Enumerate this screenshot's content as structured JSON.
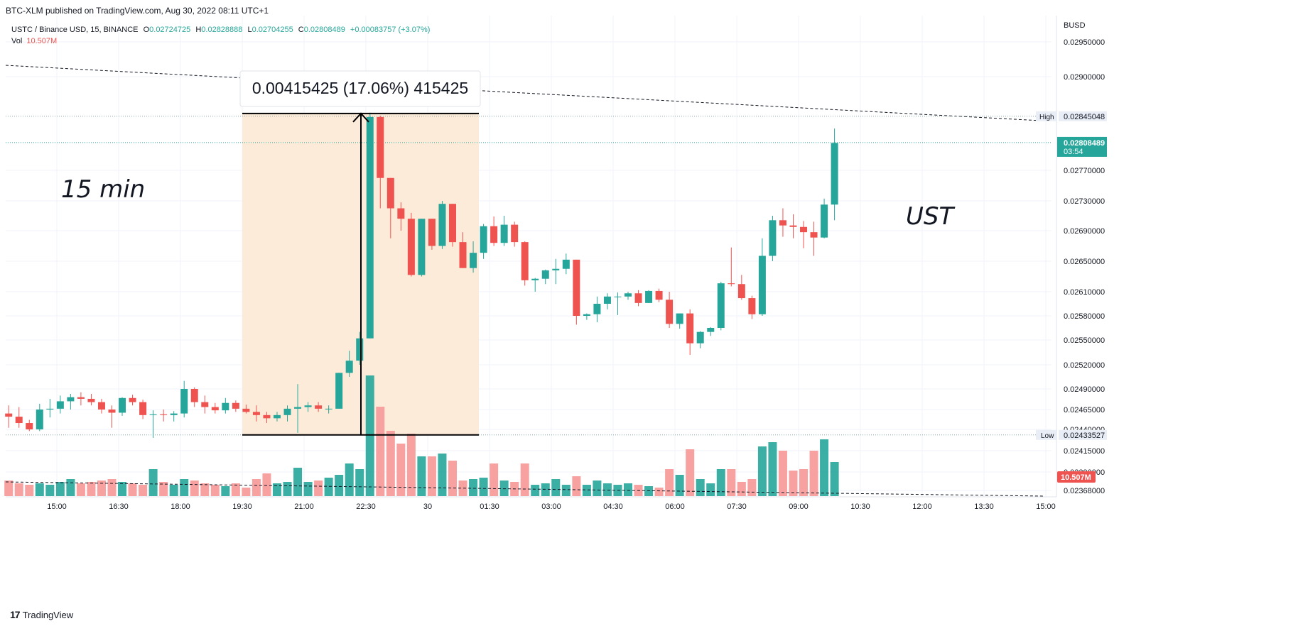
{
  "header": {
    "published": "BTC-XLM published on TradingView.com, Aug 30, 2022 08:11 UTC+1",
    "symbol": "USTC / Binance USD, 15, BINANCE",
    "o_label": "O",
    "o_value": "0.02724725",
    "h_label": "H",
    "h_value": "0.02828888",
    "l_label": "L",
    "l_value": "0.02704255",
    "c_label": "C",
    "c_value": "0.02808489",
    "change": "+0.00083757 (+3.07%)",
    "vol_label": "Vol",
    "vol_value": "10.507M"
  },
  "footer": {
    "brand": "TradingView"
  },
  "colors": {
    "up": "#26a69a",
    "down": "#ef5350",
    "up_vol": "#26a69a",
    "down_vol": "#f7a1a0",
    "range_fill": "#fdebd9"
  },
  "chart_data": {
    "type": "candlestick",
    "currency": "BUSD",
    "y_ticks": [
      "0.02950000",
      "0.02900000",
      "0.02770000",
      "0.02730000",
      "0.02690000",
      "0.02650000",
      "0.02610000",
      "0.02580000",
      "0.02550000",
      "0.02520000",
      "0.02490000",
      "0.02465000",
      "0.02440000",
      "0.02415000",
      "0.02390000",
      "0.02368000"
    ],
    "x_ticks": [
      "15:00",
      "16:30",
      "18:00",
      "19:30",
      "21:00",
      "22:30",
      "30",
      "01:30",
      "03:00",
      "04:30",
      "06:00",
      "07:30",
      "09:00",
      "10:30",
      "12:00",
      "13:30",
      "15:00"
    ],
    "high_label": "High",
    "high_value": "0.02845048",
    "low_label": "Low",
    "low_value": "0.02433527",
    "last_price": "0.02808489",
    "countdown": "03:54",
    "last_volume": "10.507M",
    "measure_label": "0.00415425 (17.06%) 415425",
    "annotations": [
      "15 min",
      "UST"
    ],
    "candles": [
      [
        0.0246,
        0.0247,
        0.02442,
        0.02456,
        1.1
      ],
      [
        0.02456,
        0.02468,
        0.02442,
        0.02448,
        0.9
      ],
      [
        0.02448,
        0.02452,
        0.02438,
        0.0244,
        0.8
      ],
      [
        0.0244,
        0.02472,
        0.02438,
        0.02465,
        0.9
      ],
      [
        0.02465,
        0.02478,
        0.02455,
        0.02466,
        0.8
      ],
      [
        0.02466,
        0.02482,
        0.0246,
        0.02475,
        1.0
      ],
      [
        0.02475,
        0.02484,
        0.02465,
        0.0248,
        1.2
      ],
      [
        0.0248,
        0.02486,
        0.0247,
        0.02478,
        0.9
      ],
      [
        0.02478,
        0.02484,
        0.0247,
        0.02474,
        1.0
      ],
      [
        0.02474,
        0.02478,
        0.0246,
        0.02465,
        1.1
      ],
      [
        0.02465,
        0.0247,
        0.02442,
        0.02461,
        1.2
      ],
      [
        0.02461,
        0.0248,
        0.02457,
        0.02479,
        1.0
      ],
      [
        0.02479,
        0.02483,
        0.0247,
        0.02474,
        0.9
      ],
      [
        0.02474,
        0.02477,
        0.02453,
        0.02458,
        0.8
      ],
      [
        0.02458,
        0.02464,
        0.0243,
        0.02459,
        1.9
      ],
      [
        0.02459,
        0.02465,
        0.0245,
        0.02458,
        1.0
      ],
      [
        0.02458,
        0.02463,
        0.0245,
        0.0246,
        0.8
      ],
      [
        0.0246,
        0.025,
        0.02455,
        0.0249,
        1.2
      ],
      [
        0.0249,
        0.02492,
        0.02468,
        0.02474,
        1.1
      ],
      [
        0.02474,
        0.02482,
        0.0246,
        0.02468,
        0.9
      ],
      [
        0.02468,
        0.02473,
        0.0246,
        0.02464,
        0.8
      ],
      [
        0.02464,
        0.02479,
        0.0246,
        0.02473,
        0.7
      ],
      [
        0.02473,
        0.02476,
        0.02462,
        0.02466,
        0.9
      ],
      [
        0.02466,
        0.02471,
        0.0246,
        0.02462,
        0.6
      ],
      [
        0.02462,
        0.0247,
        0.0245,
        0.02458,
        1.2
      ],
      [
        0.02458,
        0.02462,
        0.02448,
        0.02454,
        1.6
      ],
      [
        0.02454,
        0.02462,
        0.0245,
        0.02458,
        0.9
      ],
      [
        0.02458,
        0.0247,
        0.0245,
        0.02466,
        1.0
      ],
      [
        0.02466,
        0.02496,
        0.02436,
        0.02468,
        2.0
      ],
      [
        0.02468,
        0.02474,
        0.02462,
        0.0247,
        1.0
      ],
      [
        0.0247,
        0.02474,
        0.02462,
        0.02466,
        1.1
      ],
      [
        0.02466,
        0.0247,
        0.0246,
        0.02466,
        1.3
      ],
      [
        0.02466,
        0.0251,
        0.02466,
        0.0251,
        1.5
      ],
      [
        0.0251,
        0.02537,
        0.02505,
        0.02525,
        2.3
      ],
      [
        0.02525,
        0.0256,
        0.0252,
        0.02552,
        1.9
      ],
      [
        0.02552,
        0.0285,
        0.02552,
        0.02844,
        8.5
      ],
      [
        0.02844,
        0.02846,
        0.0272,
        0.0276,
        6.3
      ],
      [
        0.0276,
        0.0276,
        0.0268,
        0.0272,
        4.6
      ],
      [
        0.0272,
        0.02728,
        0.0269,
        0.02706,
        3.7
      ],
      [
        0.02706,
        0.02714,
        0.0263,
        0.02632,
        4.4
      ],
      [
        0.02632,
        0.02706,
        0.0263,
        0.02706,
        2.8
      ],
      [
        0.02706,
        0.02706,
        0.02665,
        0.0267,
        2.8
      ],
      [
        0.0267,
        0.0273,
        0.02666,
        0.02726,
        3.0
      ],
      [
        0.02726,
        0.02726,
        0.02669,
        0.02675,
        2.5
      ],
      [
        0.02675,
        0.02688,
        0.02641,
        0.02641,
        1.1
      ],
      [
        0.02641,
        0.02676,
        0.02635,
        0.02661,
        1.2
      ],
      [
        0.02661,
        0.02699,
        0.02653,
        0.02696,
        1.3
      ],
      [
        0.02696,
        0.02709,
        0.0267,
        0.02674,
        2.3
      ],
      [
        0.02674,
        0.0271,
        0.0267,
        0.02698,
        1.1
      ],
      [
        0.02698,
        0.02702,
        0.02669,
        0.02675,
        1.0
      ],
      [
        0.02675,
        0.02676,
        0.02618,
        0.02625,
        2.3
      ],
      [
        0.02625,
        0.02628,
        0.0261,
        0.02627,
        0.8
      ],
      [
        0.02627,
        0.02639,
        0.0262,
        0.02638,
        0.9
      ],
      [
        0.02638,
        0.02653,
        0.0262,
        0.0264,
        1.2
      ],
      [
        0.0264,
        0.0266,
        0.02633,
        0.02652,
        0.8
      ],
      [
        0.02652,
        0.02652,
        0.02569,
        0.0258,
        1.4
      ],
      [
        0.0258,
        0.02583,
        0.02575,
        0.02582,
        0.8
      ],
      [
        0.02582,
        0.02604,
        0.02572,
        0.02595,
        1.1
      ],
      [
        0.02595,
        0.02608,
        0.02588,
        0.02604,
        0.9
      ],
      [
        0.02604,
        0.02609,
        0.02581,
        0.02604,
        0.8
      ],
      [
        0.02604,
        0.0261,
        0.026,
        0.02608,
        0.9
      ],
      [
        0.02608,
        0.02612,
        0.02592,
        0.02596,
        0.8
      ],
      [
        0.02596,
        0.02612,
        0.02596,
        0.02611,
        0.7
      ],
      [
        0.02611,
        0.02614,
        0.02597,
        0.026,
        0.6
      ],
      [
        0.026,
        0.0261,
        0.02565,
        0.0257,
        1.9
      ],
      [
        0.0257,
        0.02583,
        0.02564,
        0.02583,
        1.5
      ],
      [
        0.02583,
        0.02588,
        0.02532,
        0.02546,
        3.3
      ],
      [
        0.02546,
        0.02561,
        0.0254,
        0.0256,
        1.2
      ],
      [
        0.0256,
        0.02566,
        0.02555,
        0.02565,
        0.9
      ],
      [
        0.02565,
        0.02623,
        0.02562,
        0.02621,
        1.9
      ],
      [
        0.02621,
        0.02668,
        0.02617,
        0.0262,
        1.9
      ],
      [
        0.0262,
        0.02632,
        0.026,
        0.02602,
        1.0
      ],
      [
        0.02602,
        0.02605,
        0.02576,
        0.02582,
        1.2
      ],
      [
        0.02582,
        0.0268,
        0.0258,
        0.02657,
        3.5
      ],
      [
        0.02657,
        0.0271,
        0.0265,
        0.02704,
        3.8
      ],
      [
        0.02704,
        0.0272,
        0.02682,
        0.02697,
        3.2
      ],
      [
        0.02697,
        0.02712,
        0.0268,
        0.02695,
        1.8
      ],
      [
        0.02695,
        0.02703,
        0.02667,
        0.02688,
        1.9
      ],
      [
        0.02688,
        0.02702,
        0.02657,
        0.02681,
        3.2
      ],
      [
        0.02681,
        0.02733,
        0.0268,
        0.02725,
        4.0
      ],
      [
        0.02725,
        0.02828,
        0.02704,
        0.02808,
        2.4
      ]
    ]
  }
}
